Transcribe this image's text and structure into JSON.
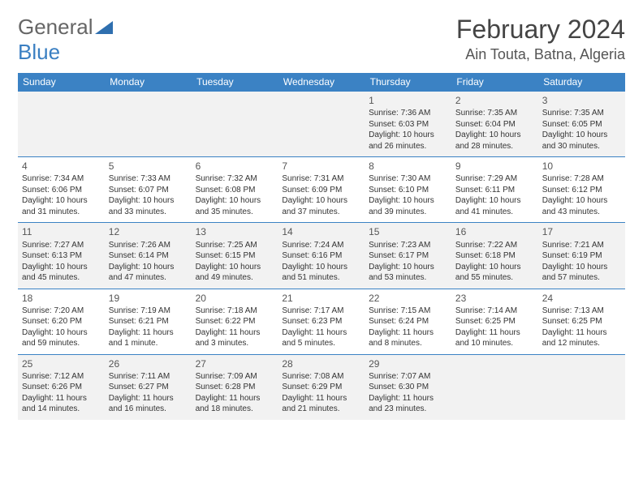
{
  "logo": {
    "text1": "General",
    "text2": "Blue"
  },
  "title": "February 2024",
  "location": "Ain Touta, Batna, Algeria",
  "colors": {
    "header_bg": "#3b82c4",
    "header_text": "#ffffff",
    "row_alt": "#f2f2f2",
    "row_plain": "#ffffff",
    "border": "#3b82c4",
    "title_color": "#444444",
    "body_text": "#333333"
  },
  "day_headers": [
    "Sunday",
    "Monday",
    "Tuesday",
    "Wednesday",
    "Thursday",
    "Friday",
    "Saturday"
  ],
  "weeks": [
    [
      {
        "n": "",
        "sr": "",
        "ss": "",
        "dl": ""
      },
      {
        "n": "",
        "sr": "",
        "ss": "",
        "dl": ""
      },
      {
        "n": "",
        "sr": "",
        "ss": "",
        "dl": ""
      },
      {
        "n": "",
        "sr": "",
        "ss": "",
        "dl": ""
      },
      {
        "n": "1",
        "sr": "Sunrise: 7:36 AM",
        "ss": "Sunset: 6:03 PM",
        "dl": "Daylight: 10 hours and 26 minutes."
      },
      {
        "n": "2",
        "sr": "Sunrise: 7:35 AM",
        "ss": "Sunset: 6:04 PM",
        "dl": "Daylight: 10 hours and 28 minutes."
      },
      {
        "n": "3",
        "sr": "Sunrise: 7:35 AM",
        "ss": "Sunset: 6:05 PM",
        "dl": "Daylight: 10 hours and 30 minutes."
      }
    ],
    [
      {
        "n": "4",
        "sr": "Sunrise: 7:34 AM",
        "ss": "Sunset: 6:06 PM",
        "dl": "Daylight: 10 hours and 31 minutes."
      },
      {
        "n": "5",
        "sr": "Sunrise: 7:33 AM",
        "ss": "Sunset: 6:07 PM",
        "dl": "Daylight: 10 hours and 33 minutes."
      },
      {
        "n": "6",
        "sr": "Sunrise: 7:32 AM",
        "ss": "Sunset: 6:08 PM",
        "dl": "Daylight: 10 hours and 35 minutes."
      },
      {
        "n": "7",
        "sr": "Sunrise: 7:31 AM",
        "ss": "Sunset: 6:09 PM",
        "dl": "Daylight: 10 hours and 37 minutes."
      },
      {
        "n": "8",
        "sr": "Sunrise: 7:30 AM",
        "ss": "Sunset: 6:10 PM",
        "dl": "Daylight: 10 hours and 39 minutes."
      },
      {
        "n": "9",
        "sr": "Sunrise: 7:29 AM",
        "ss": "Sunset: 6:11 PM",
        "dl": "Daylight: 10 hours and 41 minutes."
      },
      {
        "n": "10",
        "sr": "Sunrise: 7:28 AM",
        "ss": "Sunset: 6:12 PM",
        "dl": "Daylight: 10 hours and 43 minutes."
      }
    ],
    [
      {
        "n": "11",
        "sr": "Sunrise: 7:27 AM",
        "ss": "Sunset: 6:13 PM",
        "dl": "Daylight: 10 hours and 45 minutes."
      },
      {
        "n": "12",
        "sr": "Sunrise: 7:26 AM",
        "ss": "Sunset: 6:14 PM",
        "dl": "Daylight: 10 hours and 47 minutes."
      },
      {
        "n": "13",
        "sr": "Sunrise: 7:25 AM",
        "ss": "Sunset: 6:15 PM",
        "dl": "Daylight: 10 hours and 49 minutes."
      },
      {
        "n": "14",
        "sr": "Sunrise: 7:24 AM",
        "ss": "Sunset: 6:16 PM",
        "dl": "Daylight: 10 hours and 51 minutes."
      },
      {
        "n": "15",
        "sr": "Sunrise: 7:23 AM",
        "ss": "Sunset: 6:17 PM",
        "dl": "Daylight: 10 hours and 53 minutes."
      },
      {
        "n": "16",
        "sr": "Sunrise: 7:22 AM",
        "ss": "Sunset: 6:18 PM",
        "dl": "Daylight: 10 hours and 55 minutes."
      },
      {
        "n": "17",
        "sr": "Sunrise: 7:21 AM",
        "ss": "Sunset: 6:19 PM",
        "dl": "Daylight: 10 hours and 57 minutes."
      }
    ],
    [
      {
        "n": "18",
        "sr": "Sunrise: 7:20 AM",
        "ss": "Sunset: 6:20 PM",
        "dl": "Daylight: 10 hours and 59 minutes."
      },
      {
        "n": "19",
        "sr": "Sunrise: 7:19 AM",
        "ss": "Sunset: 6:21 PM",
        "dl": "Daylight: 11 hours and 1 minute."
      },
      {
        "n": "20",
        "sr": "Sunrise: 7:18 AM",
        "ss": "Sunset: 6:22 PM",
        "dl": "Daylight: 11 hours and 3 minutes."
      },
      {
        "n": "21",
        "sr": "Sunrise: 7:17 AM",
        "ss": "Sunset: 6:23 PM",
        "dl": "Daylight: 11 hours and 5 minutes."
      },
      {
        "n": "22",
        "sr": "Sunrise: 7:15 AM",
        "ss": "Sunset: 6:24 PM",
        "dl": "Daylight: 11 hours and 8 minutes."
      },
      {
        "n": "23",
        "sr": "Sunrise: 7:14 AM",
        "ss": "Sunset: 6:25 PM",
        "dl": "Daylight: 11 hours and 10 minutes."
      },
      {
        "n": "24",
        "sr": "Sunrise: 7:13 AM",
        "ss": "Sunset: 6:25 PM",
        "dl": "Daylight: 11 hours and 12 minutes."
      }
    ],
    [
      {
        "n": "25",
        "sr": "Sunrise: 7:12 AM",
        "ss": "Sunset: 6:26 PM",
        "dl": "Daylight: 11 hours and 14 minutes."
      },
      {
        "n": "26",
        "sr": "Sunrise: 7:11 AM",
        "ss": "Sunset: 6:27 PM",
        "dl": "Daylight: 11 hours and 16 minutes."
      },
      {
        "n": "27",
        "sr": "Sunrise: 7:09 AM",
        "ss": "Sunset: 6:28 PM",
        "dl": "Daylight: 11 hours and 18 minutes."
      },
      {
        "n": "28",
        "sr": "Sunrise: 7:08 AM",
        "ss": "Sunset: 6:29 PM",
        "dl": "Daylight: 11 hours and 21 minutes."
      },
      {
        "n": "29",
        "sr": "Sunrise: 7:07 AM",
        "ss": "Sunset: 6:30 PM",
        "dl": "Daylight: 11 hours and 23 minutes."
      },
      {
        "n": "",
        "sr": "",
        "ss": "",
        "dl": ""
      },
      {
        "n": "",
        "sr": "",
        "ss": "",
        "dl": ""
      }
    ]
  ]
}
